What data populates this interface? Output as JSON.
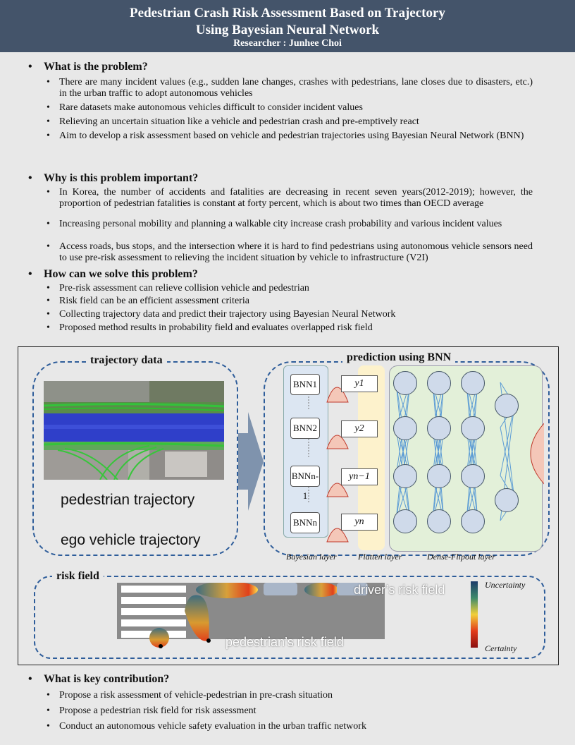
{
  "header": {
    "title_line1": "Pedestrian Crash Risk Assessment Based on Trajectory",
    "title_line2": "Using Bayesian Neural Network",
    "researcher": "Researcher : Junhee Choi"
  },
  "sections": {
    "problem": {
      "title": "What is the problem?",
      "bullets": [
        "There are many incident values (e.g., sudden lane changes, crashes with pedestrians, lane closes due to disasters, etc.) in the urban traffic to adopt autonomous vehicles",
        "Rare datasets make autonomous vehicles difficult to consider incident values",
        "Relieving an uncertain situation like a vehicle and pedestrian crash and pre-emptively react",
        "Aim to develop a risk assessment based on vehicle and pedestrian trajectories using Bayesian Neural Network (BNN)"
      ]
    },
    "importance": {
      "title": "Why is this problem important?",
      "bullets": [
        "In Korea, the number of accidents and fatalities are decreasing in recent seven years(2012-2019); however, the proportion of pedestrian fatalities is constant at forty percent, which is about two times than OECD average",
        "Increasing personal mobility and planning a walkable city increase crash probability and various incident values",
        "Access roads, bus stops, and the intersection where it is hard to find pedestrians using autonomous vehicle sensors need to use pre-risk assessment to relieving the incident situation by vehicle to infrastructure (V2I)"
      ]
    },
    "solution": {
      "title": "How can we solve this problem?",
      "bullets": [
        "Pre-risk assessment can relieve collision vehicle and pedestrian",
        "Risk field can be an efficient assessment criteria",
        "Collecting trajectory data and predict their trajectory using Bayesian Neural Network",
        "Proposed method results in probability field and evaluates overlapped risk field"
      ]
    },
    "contribution": {
      "title": "What is key contribution?",
      "bullets": [
        "Propose a risk assessment of vehicle-pedestrian in pre-crash situation",
        "Propose a pedestrian risk field for risk assessment",
        "Conduct an autonomous vehicle safety evaluation in the urban traffic network"
      ]
    }
  },
  "figure": {
    "trajectory_panel": {
      "title": "trajectory data",
      "label1": "pedestrian trajectory",
      "label2": "ego vehicle trajectory"
    },
    "bnn_panel": {
      "title": "prediction using BNN",
      "bnn_nodes": [
        "BNN1",
        "BNN2",
        "BNNn-1",
        "BNNn"
      ],
      "outputs": [
        "y1",
        "y2",
        "yn−1",
        "yn"
      ],
      "layers": [
        "Bayesian layer",
        "Flatten layer",
        "Dense-Flipout layer"
      ]
    },
    "risk_panel": {
      "title": "risk field",
      "driver_label": "driver’s risk field",
      "pedestrian_label": "pedestrian’s risk field",
      "scale_top": "Uncertainty",
      "scale_bottom": "Certainty"
    }
  },
  "colors": {
    "header_bg": "#44546a",
    "panel_border": "#2e5d9a",
    "bayesian_bg": "#dce6f2",
    "flatten_bg": "#fdf2cc",
    "dense_bg": "#e3f0d9"
  }
}
